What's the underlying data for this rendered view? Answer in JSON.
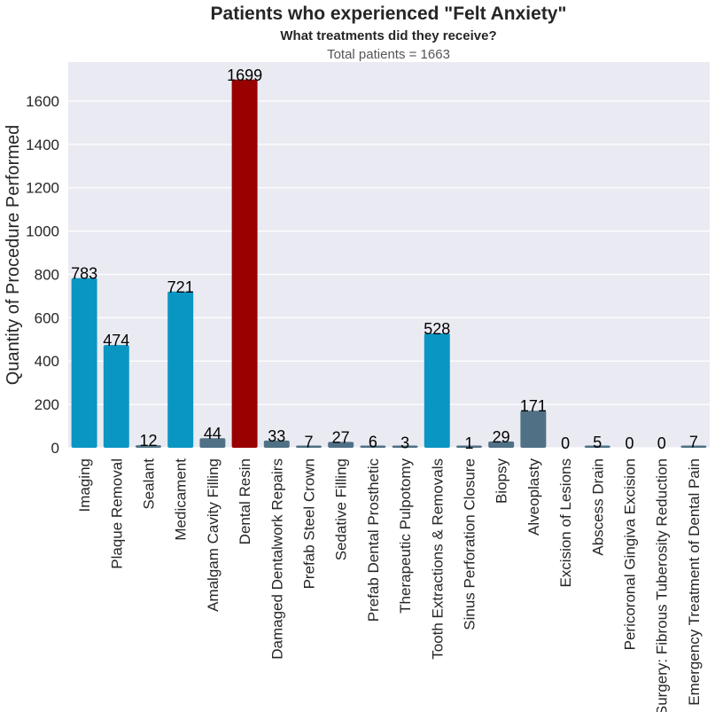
{
  "chart_data": {
    "type": "bar",
    "title": "Patients who experienced \"Felt Anxiety\"",
    "subtitle": "What treatments did they receive?",
    "caption": "Total patients = 1663",
    "xlabel": "",
    "ylabel": "Quantity of Procedure Performed",
    "ylim": [
      0,
      1780
    ],
    "yticks": [
      0,
      200,
      400,
      600,
      800,
      1000,
      1200,
      1400,
      1600
    ],
    "grid": true,
    "categories": [
      "Imaging",
      "Plaque Removal",
      "Sealant",
      "Medicament",
      "Amalgam Cavity Filling",
      "Dental Resin",
      "Damaged Dentalwork Repairs",
      "Prefab Steel Crown",
      "Sedative Filling",
      "Prefab Dental Prosthetic",
      "Therapeutic Pulpotomy",
      "Tooth Extractions & Removals",
      "Sinus Perforation Closure",
      "Biopsy",
      "Alveoplasty",
      "Excision of Lesions",
      "Abscess Drain",
      "Pericoronal Gingiva Excision",
      "Surgery: Fibrous Tuberosity Reduction",
      "Emergency Treatment of Dental Pain"
    ],
    "values": [
      783,
      474,
      12,
      721,
      44,
      1699,
      33,
      7,
      27,
      6,
      3,
      528,
      1,
      29,
      171,
      0,
      5,
      0,
      0,
      7
    ],
    "bar_colors": [
      "#0a96c2",
      "#0a96c2",
      "#4f7085",
      "#0a96c2",
      "#4f7085",
      "#990000",
      "#4f7085",
      "#4f7085",
      "#4f7085",
      "#4f7085",
      "#4f7085",
      "#0a96c2",
      "#4f7085",
      "#4f7085",
      "#4f7085",
      "#4f7085",
      "#4f7085",
      "#4f7085",
      "#4f7085",
      "#4f7085"
    ],
    "plot_background": "#eaeaf2",
    "grid_color": "#ffffff"
  }
}
